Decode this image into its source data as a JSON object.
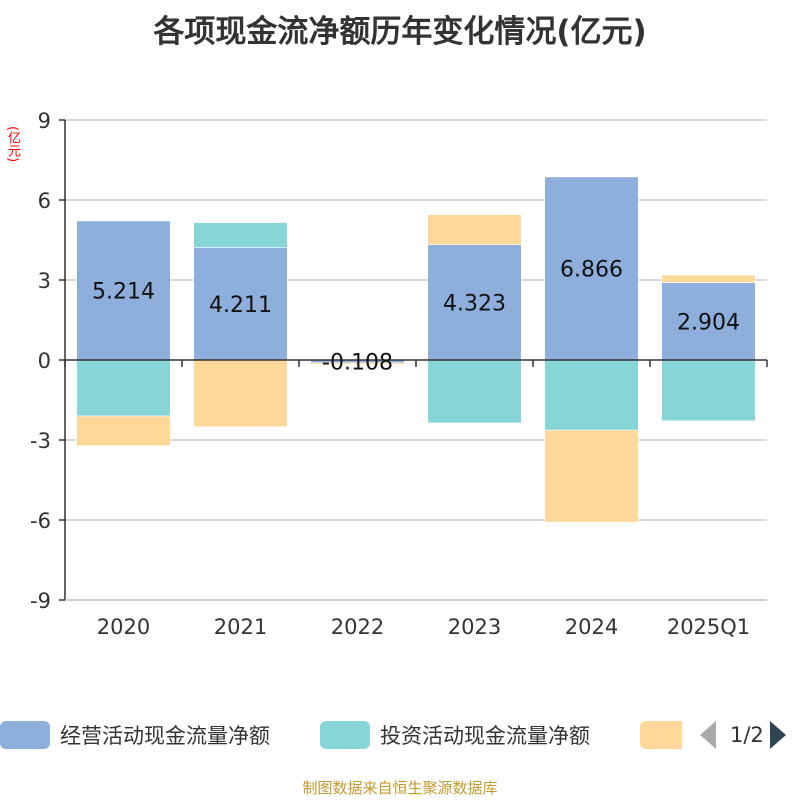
{
  "title": "各项现金流净额历年变化情况(亿元)",
  "unit_label": "(亿元)",
  "source": "制图数据来自恒生聚源数据库",
  "legend": {
    "items": [
      {
        "label": "经营活动现金流量净额",
        "color": "#8eaedb"
      },
      {
        "label": "投资活动现金流量净额",
        "color": "#86d5d7"
      },
      {
        "label": "",
        "color": "#fed898"
      }
    ],
    "page": "1/2",
    "prev_icon": "triangle-left-icon",
    "next_icon": "triangle-right-icon"
  },
  "chart_data": {
    "type": "bar",
    "stacked": true,
    "title": "各项现金流净额历年变化情况(亿元)",
    "ylabel": "(亿元)",
    "xlabel": "",
    "categories": [
      "2020",
      "2021",
      "2022",
      "2023",
      "2024",
      "2025Q1"
    ],
    "ylim": [
      -9,
      9
    ],
    "yticks": [
      9,
      6,
      3,
      0,
      -3,
      -6,
      -9
    ],
    "ytick_labels": [
      "9",
      "6",
      "3",
      "0",
      "-3",
      "-6",
      "-9"
    ],
    "grid": true,
    "legend_position": "bottom",
    "series": [
      {
        "name": "经营活动现金流量净额",
        "color": "#8eaedb",
        "values": [
          5.214,
          4.211,
          -0.108,
          4.323,
          6.866,
          2.904
        ],
        "data_labels": [
          "5.214",
          "4.211",
          "-0.108",
          "4.323",
          "6.866",
          "2.904"
        ]
      },
      {
        "name": "投资活动现金流量净额",
        "color": "#86d5d7",
        "values": [
          -2.1,
          0.94,
          0.0,
          -2.36,
          -2.63,
          -2.28
        ]
      },
      {
        "name": "",
        "color": "#fed898",
        "values": [
          -1.12,
          -2.5,
          -0.03,
          1.13,
          -3.45,
          0.28
        ]
      }
    ]
  }
}
